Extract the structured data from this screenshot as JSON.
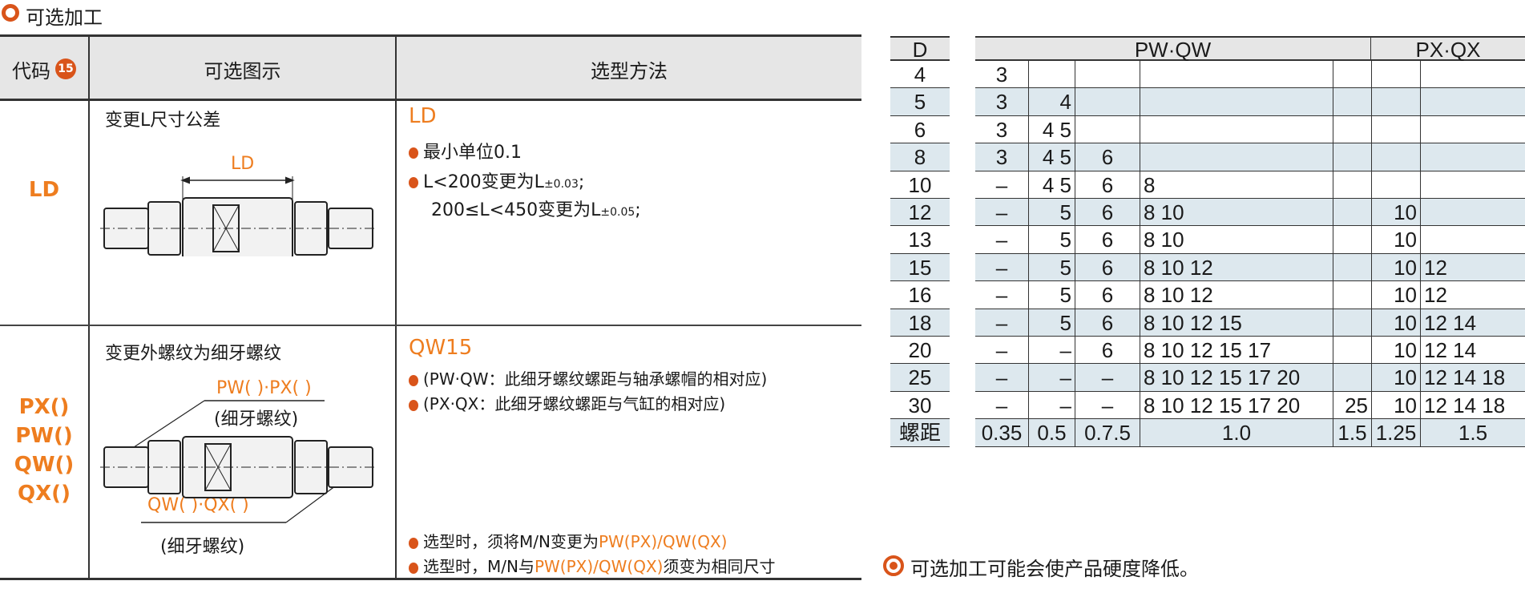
{
  "section_title": "可选加工",
  "left_table": {
    "headers": {
      "code": "代码",
      "badge": "15",
      "figure": "可选图示",
      "method": "选型方法"
    },
    "rows": [
      {
        "codes": [
          "LD"
        ],
        "figure_title": "变更L尺寸公差",
        "figure_label": "LD",
        "method_title": "LD",
        "bullets": [
          "最小单位0.1"
        ],
        "tol_line1": {
          "pre": "L<200变更为L",
          "sub": "±0.03",
          "post": ";"
        },
        "tol_line2": {
          "pre": "200≤L<450变更为L",
          "sub": "±0.05",
          "post": ";"
        }
      },
      {
        "codes": [
          "PX()",
          "PW()",
          "QW()",
          "QX()"
        ],
        "figure_title": "变更外螺纹为细牙螺纹",
        "label_top": "PW( )·PX( )",
        "label_top_note": "(细牙螺纹)",
        "label_bottom": "QW( )·QX( )",
        "label_bottom_note": "(细牙螺纹)",
        "method_title": "QW15",
        "bullets": [
          "(PW·QW：此细牙螺纹螺距与轴承螺帽的相对应)",
          "(PX·QX：此细牙螺纹螺距与气缸的相对应)"
        ],
        "note1": {
          "pre": "选型时，须将M/N变更为",
          "hl": "PW(PX)/QW(QX)",
          "post": ""
        },
        "note2": {
          "pre": "选型时，M/N与",
          "hl": "PW(PX)/QW(QX)",
          "post": "须变为相同尺寸"
        }
      }
    ]
  },
  "right_table": {
    "d_header": "D",
    "group1": "PW·QW",
    "group2": "PX·QX",
    "rows": [
      {
        "d": "4",
        "c": [
          "3",
          "",
          "",
          "",
          "",
          "",
          ""
        ]
      },
      {
        "d": "5",
        "c": [
          "3",
          "4",
          "",
          "",
          "",
          "",
          ""
        ]
      },
      {
        "d": "6",
        "c": [
          "3",
          "4 5",
          "",
          "",
          "",
          "",
          ""
        ]
      },
      {
        "d": "8",
        "c": [
          "3",
          "4 5",
          "6",
          "",
          "",
          "",
          ""
        ]
      },
      {
        "d": "10",
        "c": [
          "–",
          "4 5",
          "6",
          "8",
          "",
          "",
          ""
        ]
      },
      {
        "d": "12",
        "c": [
          "–",
          "5",
          "6",
          "8 10",
          "",
          "10",
          ""
        ]
      },
      {
        "d": "13",
        "c": [
          "–",
          "5",
          "6",
          "8 10",
          "",
          "10",
          ""
        ]
      },
      {
        "d": "15",
        "c": [
          "–",
          "5",
          "6",
          "8 10 12",
          "",
          "10",
          "12"
        ]
      },
      {
        "d": "16",
        "c": [
          "–",
          "5",
          "6",
          "8 10 12",
          "",
          "10",
          "12"
        ]
      },
      {
        "d": "18",
        "c": [
          "–",
          "5",
          "6",
          "8 10 12 15",
          "",
          "10",
          "12 14"
        ]
      },
      {
        "d": "20",
        "c": [
          "–",
          "–",
          "6",
          "8 10 12 15 17",
          "",
          "10",
          "12 14"
        ]
      },
      {
        "d": "25",
        "c": [
          "–",
          "–",
          "–",
          "8 10 12 15 17 20",
          "",
          "10",
          "12 14 18"
        ]
      },
      {
        "d": "30",
        "c": [
          "–",
          "–",
          "–",
          "8 10 12 15 17 20",
          "25",
          "10",
          "12 14 18"
        ]
      },
      {
        "d": "螺距",
        "c": [
          "0.35",
          "0.5",
          "0.7.5",
          "1.0",
          "1.5",
          "1.25",
          "1.5"
        ]
      }
    ]
  },
  "footnote": "可选加工可能会使产品硬度降低。",
  "colors": {
    "accent": "#ee7d1f",
    "bullet": "#d9541a",
    "shade": "#dde8ee",
    "header": "#e6e6e6"
  }
}
